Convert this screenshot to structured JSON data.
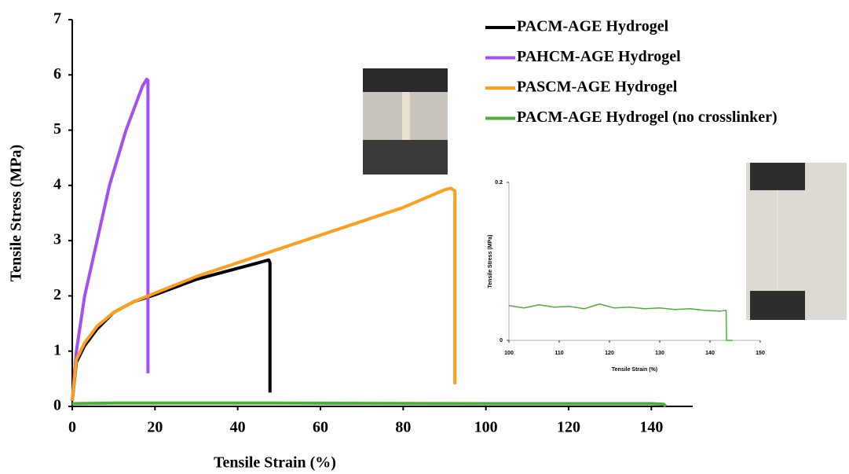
{
  "chart_data": [
    {
      "type": "line",
      "xlabel": "Tensile Strain (%)",
      "ylabel": "Tensile Stress (MPa)",
      "xlim": [
        0,
        150
      ],
      "xticks": [
        0,
        20,
        40,
        60,
        80,
        100,
        120,
        140
      ],
      "ylim": [
        0,
        7
      ],
      "yticks": [
        0,
        1,
        2,
        3,
        4,
        5,
        6,
        7
      ],
      "grid": false,
      "legend": "upper right",
      "series": [
        {
          "name": "PACM-AGE Hydrogel",
          "color": "#000000",
          "x": [
            0,
            1,
            3,
            6,
            10,
            15,
            20,
            30,
            40,
            45,
            47.5,
            47.8,
            47.8
          ],
          "values": [
            0.1,
            0.8,
            1.1,
            1.4,
            1.7,
            1.9,
            2.02,
            2.3,
            2.5,
            2.6,
            2.65,
            2.6,
            0.25
          ]
        },
        {
          "name": "PAHCM-AGE Hydrogel",
          "color": "#a64ff0",
          "x": [
            0,
            1,
            3,
            6,
            9,
            13,
            17,
            18,
            18.3,
            18.3
          ],
          "values": [
            0.1,
            1,
            2,
            3,
            4,
            5,
            5.8,
            5.92,
            5.9,
            0.6
          ]
        },
        {
          "name": "PASCM-AGE Hydrogel",
          "color": "#ff9d1c",
          "x": [
            0,
            1,
            3,
            6,
            10,
            15,
            20,
            30,
            40,
            50,
            60,
            70,
            80,
            90,
            91.5,
            92.5,
            92.5
          ],
          "values": [
            0.1,
            0.85,
            1.15,
            1.45,
            1.7,
            1.9,
            2.05,
            2.35,
            2.6,
            2.85,
            3.1,
            3.35,
            3.6,
            3.92,
            3.95,
            3.9,
            0.4
          ]
        },
        {
          "name": "PACM-AGE Hydrogel (no crosslinker)",
          "color": "#4caf39",
          "x": [
            0,
            10,
            50,
            100,
            140,
            143,
            143.5
          ],
          "values": [
            0.05,
            0.06,
            0.06,
            0.05,
            0.05,
            0.04,
            0
          ]
        }
      ]
    },
    {
      "type": "line",
      "xlabel": "Tensile Strain (%)",
      "ylabel": "Tensile Stress (MPa)",
      "xlim": [
        100,
        150
      ],
      "xticks": [
        100,
        110,
        120,
        130,
        140,
        150
      ],
      "ylim": [
        0,
        0.2
      ],
      "yticks": [
        0,
        0.2
      ],
      "grid": false,
      "series": [
        {
          "color": "#4caf39",
          "x": [
            100,
            103,
            106,
            109,
            112,
            115,
            118,
            121,
            124,
            127,
            130,
            133,
            136,
            139,
            142,
            143.2,
            143.3,
            144.5
          ],
          "values": [
            0.044,
            0.041,
            0.045,
            0.042,
            0.043,
            0.04,
            0.046,
            0.041,
            0.042,
            0.04,
            0.041,
            0.039,
            0.04,
            0.038,
            0.037,
            0.038,
            0,
            0
          ]
        }
      ]
    }
  ]
}
